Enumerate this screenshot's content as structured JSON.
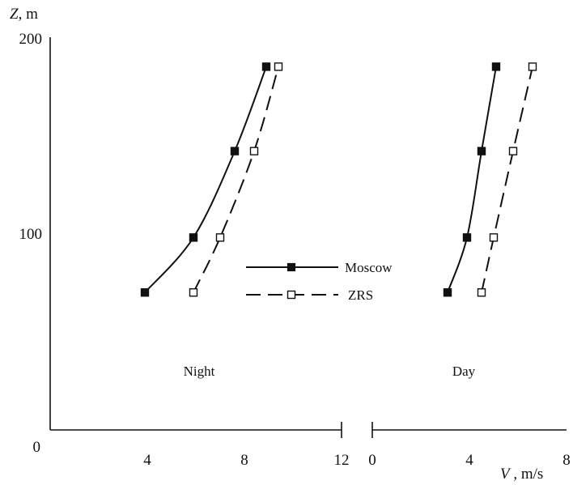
{
  "chart_data": {
    "type": "line",
    "ylabel": {
      "var": "Z",
      "unit": ", m"
    },
    "xlabel": {
      "var": "V",
      "unit": " , m/s"
    },
    "ylim": [
      0,
      200
    ],
    "y_ticks": [
      "0",
      "100",
      "200"
    ],
    "grid": false,
    "legend": {
      "placement": "center",
      "entries": [
        "Moscow",
        "ZRS"
      ]
    },
    "panels": [
      {
        "label": "Night",
        "xlim": [
          0,
          12
        ],
        "x_ticks": [
          "4",
          "8",
          "12"
        ],
        "series": [
          {
            "name": "Moscow",
            "style": "solid",
            "marker": "filled-square",
            "points": [
              [
                3.9,
                70
              ],
              [
                5.9,
                98
              ],
              [
                7.6,
                142
              ],
              [
                8.9,
                185
              ]
            ]
          },
          {
            "name": "ZRS",
            "style": "dashed",
            "marker": "open-square",
            "points": [
              [
                5.9,
                70
              ],
              [
                7.0,
                98
              ],
              [
                8.4,
                142
              ],
              [
                9.4,
                185
              ]
            ]
          }
        ]
      },
      {
        "label": "Day",
        "xlim": [
          0,
          8
        ],
        "x_ticks": [
          "0",
          "4",
          "8"
        ],
        "series": [
          {
            "name": "Moscow",
            "style": "solid",
            "marker": "filled-square",
            "points": [
              [
                3.1,
                70
              ],
              [
                3.9,
                98
              ],
              [
                4.5,
                142
              ],
              [
                5.1,
                185
              ]
            ]
          },
          {
            "name": "ZRS",
            "style": "dashed",
            "marker": "open-square",
            "points": [
              [
                4.5,
                70
              ],
              [
                5.0,
                98
              ],
              [
                5.8,
                142
              ],
              [
                6.6,
                185
              ]
            ]
          }
        ]
      }
    ]
  }
}
